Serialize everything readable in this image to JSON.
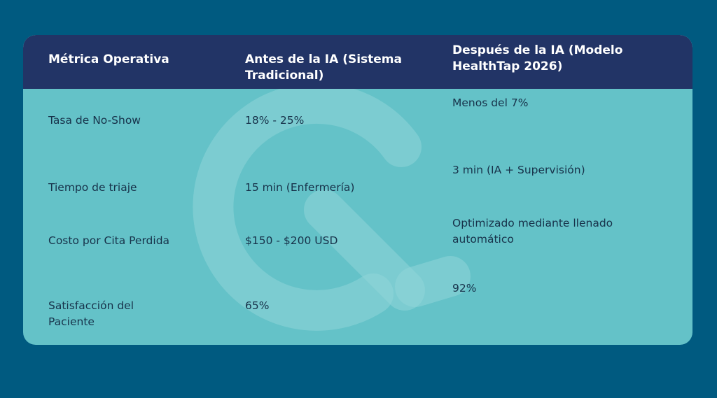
{
  "table": {
    "headers": [
      "Métrica Operativa",
      "Antes de la IA (Sistema Tradicional)",
      "Después de la IA (Modelo HealthTap 2026)"
    ],
    "rows": [
      {
        "metric": "Tasa de No-Show",
        "before": "18% - 25%",
        "after": "Menos del 7%"
      },
      {
        "metric": "Tiempo de triaje",
        "before": "15 min (Enfermería)",
        "after": "3 min (IA + Supervisión)"
      },
      {
        "metric": "Costo por Cita Perdida",
        "before": "$150 - $200 USD",
        "after": "Optimizado mediante llenado automático"
      },
      {
        "metric": "Satisfacción del Paciente",
        "before": "65%",
        "after": "92%"
      }
    ]
  },
  "colors": {
    "background": "#005a80",
    "header": "#223466",
    "card": "#64c2c8",
    "watermark": "#8fd5d8"
  },
  "watermark_icon": "health-logo-icon"
}
